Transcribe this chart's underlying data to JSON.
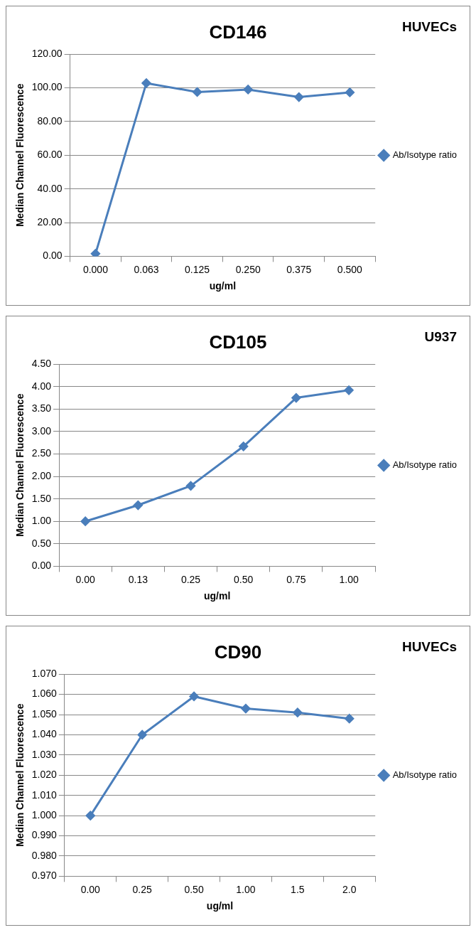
{
  "chart_data": [
    {
      "type": "line",
      "title": "CD146",
      "annotations": [
        "HUVECs"
      ],
      "xlabel": "ug/ml",
      "ylabel": "Median Channel Fluorescence",
      "categories": [
        "0.000",
        "0.063",
        "0.125",
        "0.250",
        "0.375",
        "0.500"
      ],
      "series": [
        {
          "name": "Ab/Isotype ratio",
          "color": "#4a7ebb",
          "values": [
            1.5,
            102.8,
            97.5,
            99,
            94.5,
            97.3
          ]
        }
      ],
      "ylim": [
        0,
        120
      ],
      "yticks": [
        {
          "value": 0,
          "label": "0.00"
        },
        {
          "value": 20,
          "label": "20.00"
        },
        {
          "value": 40,
          "label": "40.00"
        },
        {
          "value": 60,
          "label": "60.00"
        },
        {
          "value": 80,
          "label": "80.00"
        },
        {
          "value": 100,
          "label": "100.00"
        },
        {
          "value": 120,
          "label": "120.00"
        }
      ],
      "grid": "y",
      "legend": "right",
      "marker": "diamond",
      "line_style": "solid"
    },
    {
      "type": "line",
      "title": "CD105",
      "annotations": [
        "U937"
      ],
      "xlabel": "ug/ml",
      "ylabel": "Median Channel Fluorescence",
      "categories": [
        "0.00",
        "0.13",
        "0.25",
        "0.50",
        "0.75",
        "1.00"
      ],
      "series": [
        {
          "name": "Ab/Isotype ratio",
          "color": "#4a7ebb",
          "values": [
            1.0,
            1.36,
            1.79,
            2.67,
            3.75,
            3.92
          ]
        }
      ],
      "ylim": [
        0,
        4.5
      ],
      "yticks": [
        {
          "value": 0,
          "label": "0.00"
        },
        {
          "value": 0.5,
          "label": "0.50"
        },
        {
          "value": 1,
          "label": "1.00"
        },
        {
          "value": 1.5,
          "label": "1.50"
        },
        {
          "value": 2,
          "label": "2.00"
        },
        {
          "value": 2.5,
          "label": "2.50"
        },
        {
          "value": 3,
          "label": "3.00"
        },
        {
          "value": 3.5,
          "label": "3.50"
        },
        {
          "value": 4,
          "label": "4.00"
        },
        {
          "value": 4.5,
          "label": "4.50"
        }
      ],
      "grid": "y",
      "legend": "right",
      "marker": "diamond",
      "line_style": "solid"
    },
    {
      "type": "line",
      "title": "CD90",
      "annotations": [
        "HUVECs"
      ],
      "xlabel": "ug/ml",
      "ylabel": "Median Channel Fluorescence",
      "categories": [
        "0.00",
        "0.25",
        "0.50",
        "1.00",
        "1.5",
        "2.0"
      ],
      "series": [
        {
          "name": "Ab/Isotype ratio",
          "color": "#4a7ebb",
          "values": [
            1.0,
            1.04,
            1.059,
            1.053,
            1.051,
            1.048
          ]
        }
      ],
      "ylim": [
        0.97,
        1.07
      ],
      "yticks": [
        {
          "value": 0.97,
          "label": "0.970"
        },
        {
          "value": 0.98,
          "label": "0.980"
        },
        {
          "value": 0.99,
          "label": "0.990"
        },
        {
          "value": 1.0,
          "label": "1.000"
        },
        {
          "value": 1.01,
          "label": "1.010"
        },
        {
          "value": 1.02,
          "label": "1.020"
        },
        {
          "value": 1.03,
          "label": "1.030"
        },
        {
          "value": 1.04,
          "label": "1.040"
        },
        {
          "value": 1.05,
          "label": "1.050"
        },
        {
          "value": 1.06,
          "label": "1.060"
        },
        {
          "value": 1.07,
          "label": "1.070"
        }
      ],
      "grid": "y",
      "legend": "right",
      "marker": "diamond",
      "line_style": "solid"
    }
  ]
}
